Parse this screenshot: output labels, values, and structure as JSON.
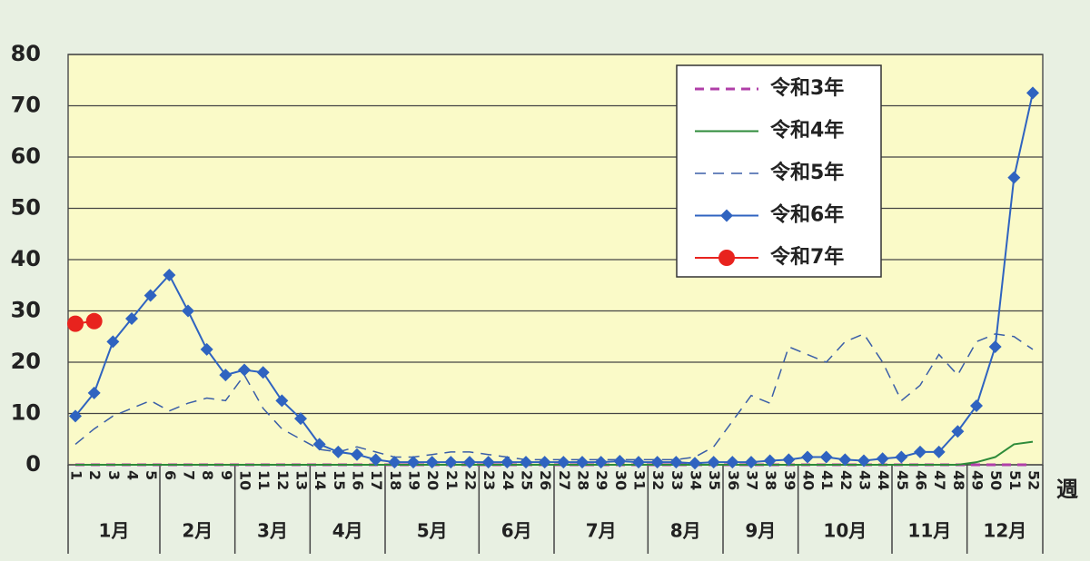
{
  "chart_data": {
    "type": "line",
    "categories": [
      "1",
      "2",
      "3",
      "4",
      "5",
      "6",
      "7",
      "8",
      "9",
      "10",
      "11",
      "12",
      "13",
      "14",
      "15",
      "16",
      "17",
      "18",
      "19",
      "20",
      "21",
      "22",
      "23",
      "24",
      "25",
      "26",
      "27",
      "28",
      "29",
      "30",
      "31",
      "32",
      "33",
      "34",
      "35",
      "36",
      "37",
      "38",
      "39",
      "40",
      "41",
      "42",
      "43",
      "44",
      "45",
      "46",
      "47",
      "48",
      "49",
      "50",
      "51",
      "52"
    ],
    "x_label": "週",
    "months": [
      {
        "label": "1月",
        "first_week": 1,
        "last_week": 5
      },
      {
        "label": "2月",
        "first_week": 6,
        "last_week": 9
      },
      {
        "label": "3月",
        "first_week": 10,
        "last_week": 13
      },
      {
        "label": "4月",
        "first_week": 14,
        "last_week": 17
      },
      {
        "label": "5月",
        "first_week": 18,
        "last_week": 22
      },
      {
        "label": "6月",
        "first_week": 23,
        "last_week": 26
      },
      {
        "label": "7月",
        "first_week": 27,
        "last_week": 31
      },
      {
        "label": "8月",
        "first_week": 32,
        "last_week": 35
      },
      {
        "label": "9月",
        "first_week": 36,
        "last_week": 39
      },
      {
        "label": "10月",
        "first_week": 40,
        "last_week": 44
      },
      {
        "label": "11月",
        "first_week": 45,
        "last_week": 48
      },
      {
        "label": "12月",
        "first_week": 49,
        "last_week": 52
      }
    ],
    "ylim": [
      0,
      80
    ],
    "yticks": [
      0,
      10,
      20,
      30,
      40,
      50,
      60,
      70,
      80
    ],
    "grid": true,
    "legend": "upper-right",
    "series": [
      {
        "name": "令和3年",
        "color": "#b03fa8",
        "dash": "dashed-bold",
        "marker": "none",
        "values": [
          0,
          0,
          0,
          0,
          0,
          0,
          0,
          0,
          0,
          0,
          0,
          0,
          0,
          0,
          0,
          0,
          0,
          0,
          0,
          0,
          0,
          0,
          0,
          0,
          0,
          0,
          0,
          0,
          0,
          0,
          0,
          0,
          0,
          0,
          0,
          0,
          0,
          0,
          0,
          0,
          0,
          0,
          0,
          0,
          0,
          0,
          0,
          0,
          0,
          0,
          0,
          0
        ]
      },
      {
        "name": "令和4年",
        "color": "#2e8b3a",
        "dash": "solid",
        "marker": "none",
        "values": [
          0,
          0,
          0,
          0,
          0,
          0,
          0,
          0,
          0,
          0,
          0,
          0,
          0,
          0,
          0,
          0,
          0,
          0,
          0,
          0,
          0,
          0,
          0,
          0,
          0,
          0,
          0,
          0,
          0,
          0,
          0,
          0,
          0,
          0,
          0,
          0,
          0,
          0,
          0,
          0,
          0,
          0,
          0,
          0,
          0,
          0,
          0,
          0,
          0.5,
          1.5,
          4,
          4.5
        ]
      },
      {
        "name": "令和5年",
        "color": "#3a5ea8",
        "dash": "dashed",
        "marker": "none",
        "values": [
          4,
          7,
          9.5,
          11,
          12.5,
          10.5,
          12,
          13,
          12.5,
          17.5,
          11,
          7,
          5,
          3,
          2.5,
          3.5,
          2.5,
          1.5,
          1.5,
          2,
          2.5,
          2.5,
          2,
          1.5,
          1,
          1,
          1,
          1,
          1,
          1,
          1,
          1,
          1,
          1.5,
          3.5,
          8.5,
          13.5,
          12,
          23,
          21.5,
          20,
          24,
          25.5,
          20,
          12.5,
          15.5,
          21.5,
          17.5,
          24,
          25.5,
          25,
          22.5
        ]
      },
      {
        "name": "令和6年",
        "color": "#2f63c0",
        "dash": "solid",
        "marker": "diamond",
        "values": [
          9.5,
          14,
          24,
          28.5,
          33,
          37,
          30,
          22.5,
          17.5,
          18.5,
          18,
          12.5,
          9,
          4,
          2.5,
          2,
          1,
          0.5,
          0.5,
          0.5,
          0.5,
          0.5,
          0.5,
          0.5,
          0.5,
          0.5,
          0.5,
          0.5,
          0.5,
          0.7,
          0.5,
          0.5,
          0.5,
          0.3,
          0.5,
          0.5,
          0.5,
          0.8,
          1,
          1.5,
          1.5,
          1,
          0.8,
          1.2,
          1.5,
          2.5,
          2.5,
          6.5,
          11.5,
          23,
          56,
          72.5
        ]
      },
      {
        "name": "令和7年",
        "color": "#e8231e",
        "dash": "solid",
        "marker": "circle",
        "values": [
          27.5,
          28,
          null,
          null,
          null,
          null,
          null,
          null,
          null,
          null,
          null,
          null,
          null,
          null,
          null,
          null,
          null,
          null,
          null,
          null,
          null,
          null,
          null,
          null,
          null,
          null,
          null,
          null,
          null,
          null,
          null,
          null,
          null,
          null,
          null,
          null,
          null,
          null,
          null,
          null,
          null,
          null,
          null,
          null,
          null,
          null,
          null,
          null,
          null,
          null,
          null,
          null
        ]
      }
    ]
  }
}
